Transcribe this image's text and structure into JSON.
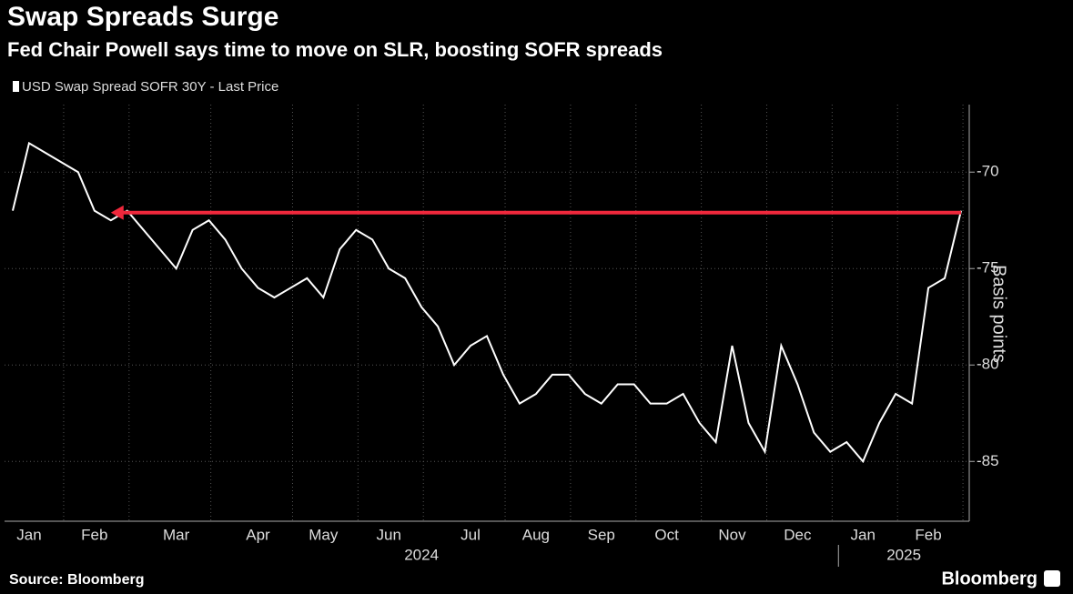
{
  "chart_data": {
    "type": "line",
    "title": "Swap Spreads Surge",
    "subtitle": "Fed Chair Powell says time to move on SLR, boosting SOFR spreads",
    "y_axis_label": "Basis points",
    "source": "Source: Bloomberg",
    "brand": "Bloomberg",
    "categories": [
      null,
      "Jan",
      null,
      null,
      null,
      "Feb",
      null,
      null,
      null,
      null,
      "Mar",
      null,
      null,
      null,
      null,
      "Apr",
      null,
      null,
      null,
      "May",
      null,
      null,
      null,
      "Jun",
      null,
      null,
      null,
      null,
      "Jul",
      null,
      null,
      null,
      "Aug",
      null,
      null,
      null,
      "Sep",
      null,
      null,
      null,
      "Oct",
      null,
      null,
      null,
      "Nov",
      null,
      null,
      null,
      "Dec",
      null,
      null,
      null,
      "Jan",
      null,
      null,
      null,
      "Feb",
      null,
      null
    ],
    "x_groups": [
      {
        "label": "2024",
        "from": 0,
        "to": 50
      },
      {
        "label": "2025",
        "from": 51,
        "to": 58
      }
    ],
    "series": [
      {
        "name": "USD Swap Spread SOFR 30Y - Last Price",
        "color": "#ffffff",
        "values": [
          -72,
          -68.5,
          -69,
          -69.5,
          -70,
          -72,
          -72.5,
          -72,
          -73,
          -74,
          -75,
          -73,
          -72.5,
          -73.5,
          -75,
          -76,
          -76.5,
          -76,
          -75.5,
          -76.5,
          -74,
          -73,
          -73.5,
          -75,
          -75.5,
          -77,
          -78,
          -80,
          -79,
          -78.5,
          -80.5,
          -82,
          -81.5,
          -80.5,
          -80.5,
          -81.5,
          -82,
          -81,
          -81,
          -82,
          -82,
          -81.5,
          -83,
          -84,
          -79,
          -83,
          -84.5,
          -79,
          -81,
          -83.5,
          -84.5,
          -84,
          -85,
          -83,
          -81.5,
          -82,
          -76,
          -75.5,
          -72
        ]
      }
    ],
    "annotations": [
      {
        "y": -72.1,
        "from": 58,
        "to": 6,
        "color": "#f0283c"
      }
    ],
    "ylim": [
      -88.1,
      -66.5
    ],
    "yticks": [
      -70,
      -75,
      -80,
      -85
    ],
    "y_axis_side": "right"
  }
}
